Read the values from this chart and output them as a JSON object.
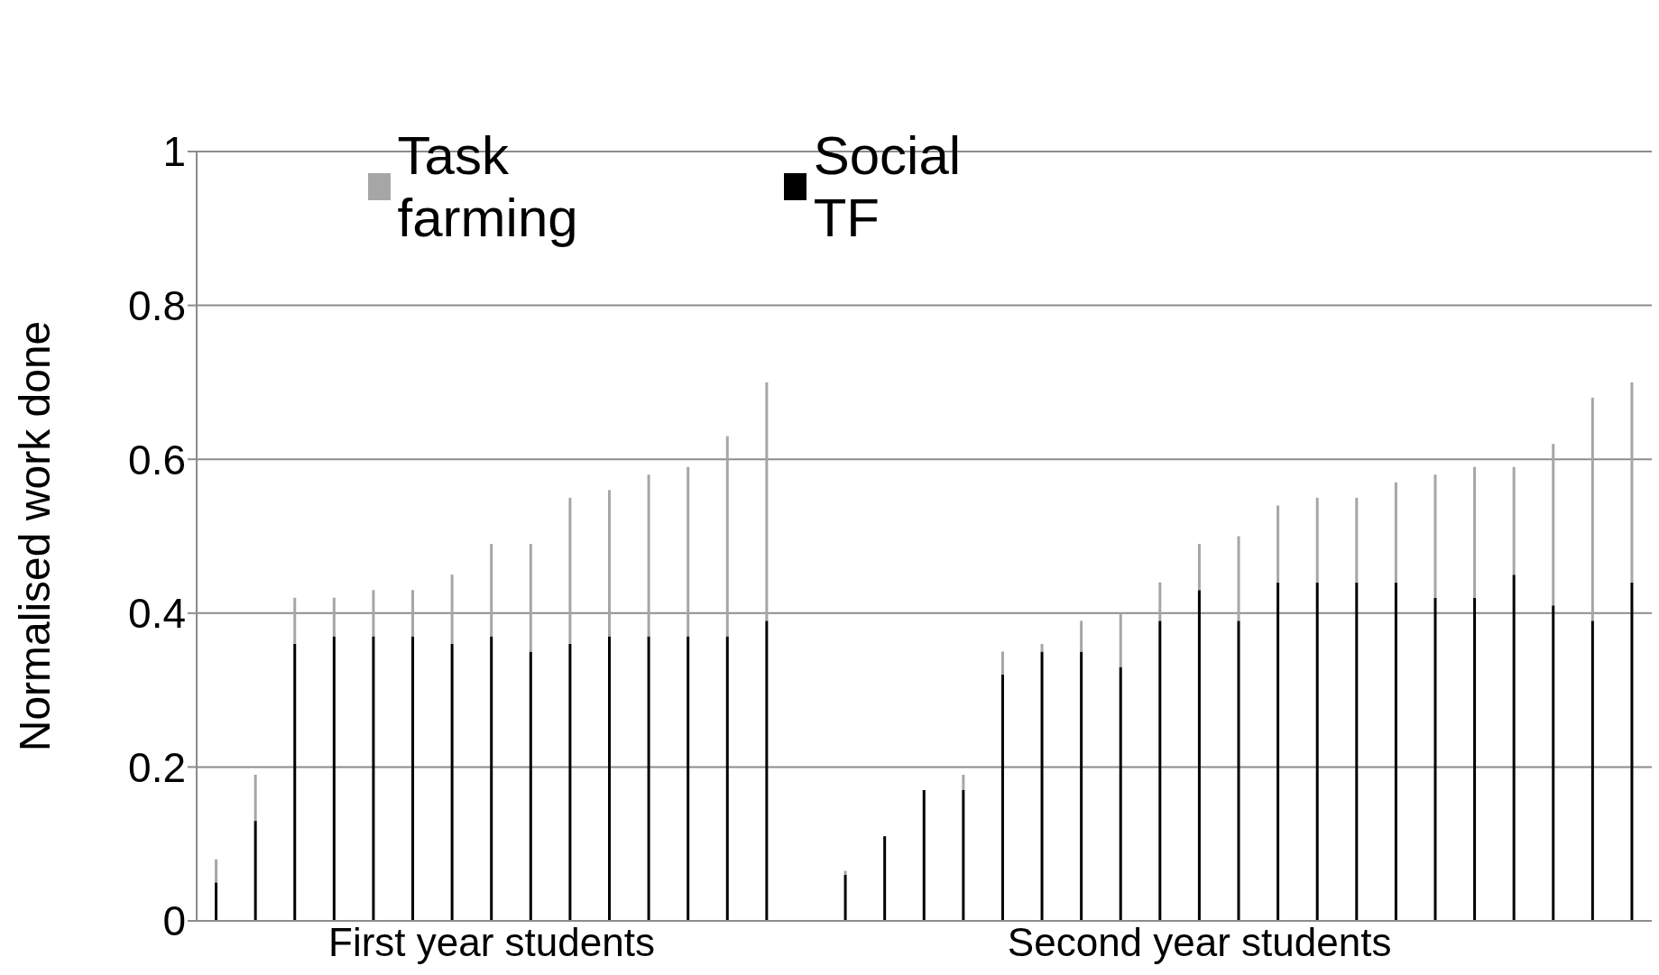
{
  "chart_data": {
    "type": "bar",
    "stacked": true,
    "ylabel": "Normalised work done",
    "categories": [
      null,
      null,
      null,
      null,
      null,
      null,
      null,
      "First year students",
      null,
      null,
      null,
      null,
      null,
      null,
      null,
      null,
      null,
      null,
      null,
      null,
      null,
      null,
      null,
      null,
      null,
      "Second year students",
      null,
      null,
      null,
      null,
      null,
      null,
      null,
      null,
      null,
      null,
      null
    ],
    "series": [
      {
        "name": "Social TF",
        "color": "#000000",
        "values": [
          0.05,
          0.13,
          0.36,
          0.37,
          0.37,
          0.37,
          0.36,
          0.37,
          0.35,
          0.36,
          0.37,
          0.37,
          0.37,
          0.37,
          0.39,
          null,
          0.06,
          0.11,
          0.17,
          0.17,
          0.32,
          0.35,
          0.35,
          0.33,
          0.39,
          0.43,
          0.39,
          0.44,
          0.44,
          0.44,
          0.44,
          0.42,
          0.42,
          0.45,
          0.41,
          0.39,
          0.44
        ]
      },
      {
        "name": "Task farming",
        "color": "#a6a6a6",
        "values": [
          0.03,
          0.06,
          0.06,
          0.05,
          0.06,
          0.06,
          0.09,
          0.12,
          0.14,
          0.19,
          0.19,
          0.21,
          0.22,
          0.26,
          0.31,
          null,
          0.005,
          0,
          0,
          0.02,
          0.03,
          0.01,
          0.04,
          0.07,
          0.05,
          0.06,
          0.11,
          0.1,
          0.11,
          0.11,
          0.13,
          0.16,
          0.17,
          0.14,
          0.21,
          0.29,
          0.26
        ]
      }
    ],
    "ylim": [
      0,
      1
    ],
    "yticks": [
      0,
      0.2,
      0.4,
      0.6,
      0.8,
      1
    ],
    "grid": "y",
    "legend": "top"
  }
}
